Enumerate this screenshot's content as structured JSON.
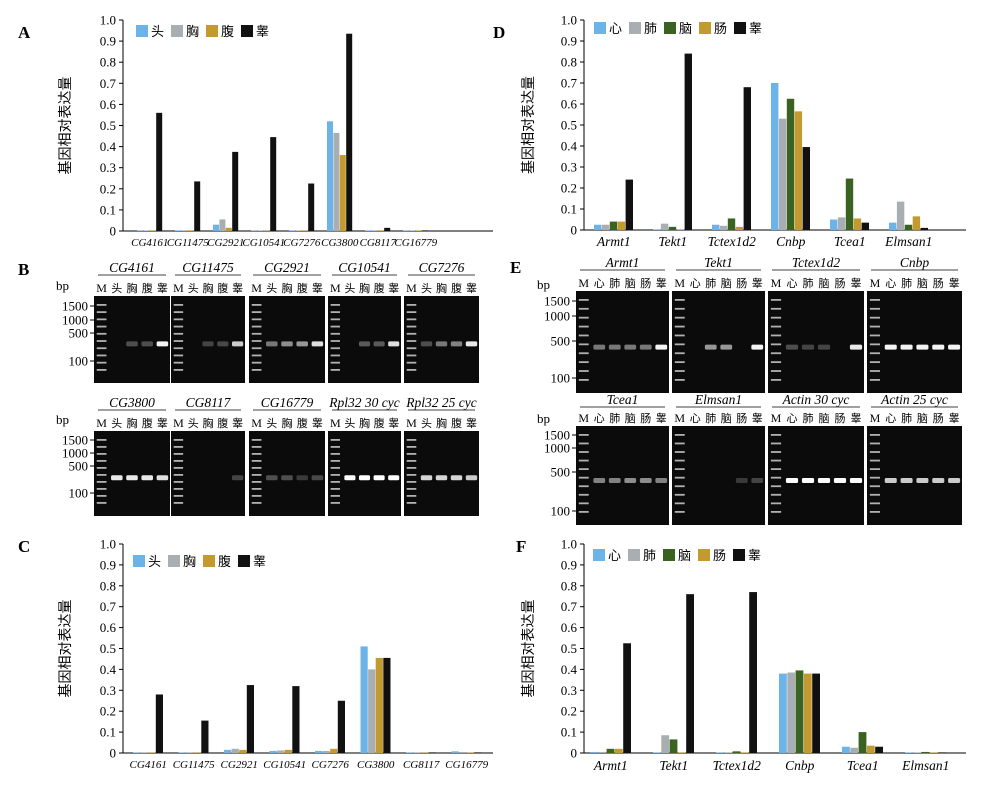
{
  "colors": {
    "c1": "#6cb4e8",
    "c2": "#a8aeb2",
    "c3": "#c39a2f",
    "c4": "#111111",
    "heart": "#6cb4e8",
    "lung": "#a8aeb2",
    "brain": "#3a6321",
    "gut": "#c39a2f",
    "testis": "#111111"
  },
  "ytick_labels": [
    "0",
    "0.1",
    "0.2",
    "0.3",
    "0.4",
    "0.5",
    "0.6",
    "0.7",
    "0.8",
    "0.9",
    "1.0"
  ],
  "chart_data": [
    {
      "panel": "A",
      "type": "bar",
      "ylabel": "基因相对表达量",
      "ylim": [
        0,
        1
      ],
      "legend": "top-left",
      "categories": [
        "CG4161",
        "CG11475",
        "CG2921",
        "CG10541",
        "CG7276",
        "CG3800",
        "CG8117",
        "CG16779"
      ],
      "series": [
        {
          "name": "头",
          "color_key": "c1",
          "values": [
            0.003,
            0.003,
            0.03,
            0.003,
            0.003,
            0.52,
            0.003,
            0.003
          ]
        },
        {
          "name": "胸",
          "color_key": "c2",
          "values": [
            0.003,
            0.003,
            0.055,
            0.003,
            0.003,
            0.465,
            0.003,
            0.003
          ]
        },
        {
          "name": "腹",
          "color_key": "c3",
          "values": [
            0.003,
            0.003,
            0.015,
            0.003,
            0.003,
            0.36,
            0.003,
            0.003
          ]
        },
        {
          "name": "睾",
          "color_key": "c4",
          "values": [
            0.56,
            0.235,
            0.375,
            0.445,
            0.225,
            0.935,
            0.015,
            0.003
          ]
        }
      ]
    },
    {
      "panel": "C",
      "type": "bar",
      "ylabel": "基因相对表达量",
      "ylim": [
        0,
        1
      ],
      "legend": "top-left",
      "categories": [
        "CG4161",
        "CG11475",
        "CG2921",
        "CG10541",
        "CG7276",
        "CG3800",
        "CG8117",
        "CG16779"
      ],
      "series": [
        {
          "name": "头",
          "color_key": "c1",
          "values": [
            0.003,
            0.003,
            0.015,
            0.01,
            0.01,
            0.51,
            0.003,
            0.008
          ]
        },
        {
          "name": "胸",
          "color_key": "c2",
          "values": [
            0.003,
            0.003,
            0.02,
            0.012,
            0.01,
            0.4,
            0.003,
            0.005
          ]
        },
        {
          "name": "腹",
          "color_key": "c3",
          "values": [
            0.003,
            0.003,
            0.015,
            0.015,
            0.02,
            0.455,
            0.003,
            0.003
          ]
        },
        {
          "name": "睾",
          "color_key": "c4",
          "values": [
            0.28,
            0.155,
            0.325,
            0.32,
            0.25,
            0.455,
            0.003,
            0.003
          ]
        }
      ]
    },
    {
      "panel": "D",
      "type": "bar",
      "ylabel": "基因相对表达量",
      "ylim": [
        0,
        1
      ],
      "legend": "top-left",
      "categories": [
        "Armt1",
        "Tekt1",
        "Tctex1d2",
        "Cnbp",
        "Tcea1",
        "Elmsan1"
      ],
      "series": [
        {
          "name": "心",
          "color_key": "heart",
          "values": [
            0.025,
            0.003,
            0.025,
            0.7,
            0.05,
            0.035
          ]
        },
        {
          "name": "肺",
          "color_key": "lung",
          "values": [
            0.025,
            0.03,
            0.02,
            0.53,
            0.06,
            0.135
          ]
        },
        {
          "name": "脑",
          "color_key": "brain",
          "values": [
            0.04,
            0.015,
            0.055,
            0.625,
            0.245,
            0.025
          ]
        },
        {
          "name": "肠",
          "color_key": "gut",
          "values": [
            0.04,
            0.003,
            0.015,
            0.565,
            0.055,
            0.065
          ]
        },
        {
          "name": "睾",
          "color_key": "testis",
          "values": [
            0.24,
            0.84,
            0.68,
            0.395,
            0.035,
            0.01
          ]
        }
      ]
    },
    {
      "panel": "F",
      "type": "bar",
      "ylabel": "基因相对表达量",
      "ylim": [
        0,
        1
      ],
      "legend": "top-left",
      "categories": [
        "Armt1",
        "Tekt1",
        "Tctex1d2",
        "Cnbp",
        "Tcea1",
        "Elmsan1"
      ],
      "series": [
        {
          "name": "心",
          "color_key": "heart",
          "values": [
            0.005,
            0.003,
            0.003,
            0.38,
            0.03,
            0.003
          ]
        },
        {
          "name": "肺",
          "color_key": "lung",
          "values": [
            0.005,
            0.085,
            0.003,
            0.385,
            0.025,
            0.003
          ]
        },
        {
          "name": "脑",
          "color_key": "brain",
          "values": [
            0.02,
            0.065,
            0.008,
            0.395,
            0.1,
            0.005
          ]
        },
        {
          "name": "肠",
          "color_key": "gut",
          "values": [
            0.02,
            0.003,
            0.003,
            0.38,
            0.035,
            0.003
          ]
        },
        {
          "name": "睾",
          "color_key": "testis",
          "values": [
            0.525,
            0.76,
            0.77,
            0.38,
            0.03,
            0.003
          ]
        }
      ]
    }
  ],
  "gels": [
    {
      "panel": "B",
      "bp_label": "bp",
      "rows": [
        {
          "ladder": [
            "1500",
            "1000",
            "500",
            "100"
          ],
          "items": [
            {
              "title": "CG4161",
              "lanes": [
                "M",
                "头",
                "胸",
                "腹",
                "睾"
              ],
              "bands": [
                0,
                0.15,
                0.15,
                0.95
              ]
            },
            {
              "title": "CG11475",
              "lanes": [
                "M",
                "头",
                "胸",
                "腹",
                "睾"
              ],
              "bands": [
                0,
                0.1,
                0.12,
                0.75
              ]
            },
            {
              "title": "CG2921",
              "lanes": [
                "M",
                "头",
                "胸",
                "腹",
                "睾"
              ],
              "bands": [
                0.35,
                0.45,
                0.5,
                0.85
              ]
            },
            {
              "title": "CG10541",
              "lanes": [
                "M",
                "头",
                "胸",
                "腹",
                "睾"
              ],
              "bands": [
                0,
                0.2,
                0.2,
                0.85
              ]
            },
            {
              "title": "CG7276",
              "lanes": [
                "M",
                "头",
                "胸",
                "腹",
                "睾"
              ],
              "bands": [
                0.15,
                0.35,
                0.4,
                0.9
              ]
            }
          ]
        },
        {
          "ladder": [
            "1500",
            "1000",
            "500",
            "100"
          ],
          "items": [
            {
              "title": "CG3800",
              "lanes": [
                "M",
                "头",
                "胸",
                "腹",
                "睾"
              ],
              "bands": [
                0.9,
                0.9,
                0.9,
                0.85
              ]
            },
            {
              "title": "CG8117",
              "lanes": [
                "M",
                "头",
                "胸",
                "腹",
                "睾"
              ],
              "bands": [
                0,
                0,
                0,
                0.1
              ]
            },
            {
              "title": "CG16779",
              "lanes": [
                "M",
                "头",
                "胸",
                "腹",
                "睾"
              ],
              "bands": [
                0.15,
                0.15,
                0.05,
                0.12
              ]
            },
            {
              "title": "Rpl32 30 cyc",
              "lanes": [
                "M",
                "头",
                "胸",
                "腹",
                "睾"
              ],
              "bands": [
                1,
                1,
                1,
                1
              ]
            },
            {
              "title": "Rpl32 25 cyc",
              "lanes": [
                "M",
                "头",
                "胸",
                "腹",
                "睾"
              ],
              "bands": [
                0.8,
                0.8,
                0.8,
                0.75
              ]
            }
          ]
        }
      ]
    },
    {
      "panel": "E",
      "bp_label": "bp",
      "rows": [
        {
          "ladder": [
            "1500",
            "1000",
            "500",
            "100"
          ],
          "items": [
            {
              "title": "Armt1",
              "lanes": [
                "M",
                "心",
                "肺",
                "脑",
                "肠",
                "睾"
              ],
              "bands": [
                0.35,
                0.35,
                0.35,
                0.35,
                0.95
              ]
            },
            {
              "title": "Tekt1",
              "lanes": [
                "M",
                "心",
                "肺",
                "脑",
                "肠",
                "睾"
              ],
              "bands": [
                0,
                0.5,
                0.5,
                0,
                0.95
              ]
            },
            {
              "title": "Tctex1d2",
              "lanes": [
                "M",
                "心",
                "肺",
                "脑",
                "肠",
                "睾"
              ],
              "bands": [
                0.15,
                0.1,
                0.1,
                0,
                0.9
              ]
            },
            {
              "title": "Cnbp",
              "lanes": [
                "M",
                "心",
                "肺",
                "脑",
                "肠",
                "睾"
              ],
              "bands": [
                0.95,
                0.95,
                0.95,
                0.95,
                0.95
              ]
            }
          ]
        },
        {
          "ladder": [
            "1500",
            "1000",
            "500",
            "100"
          ],
          "items": [
            {
              "title": "Tcea1",
              "lanes": [
                "M",
                "心",
                "肺",
                "脑",
                "肠",
                "睾"
              ],
              "bands": [
                0.4,
                0.4,
                0.45,
                0.45,
                0.4
              ]
            },
            {
              "title": "Elmsan1",
              "lanes": [
                "M",
                "心",
                "肺",
                "脑",
                "肠",
                "睾"
              ],
              "bands": [
                0,
                0,
                0,
                0.05,
                0.1
              ]
            },
            {
              "title": "Actin 30 cyc",
              "lanes": [
                "M",
                "心",
                "肺",
                "脑",
                "肠",
                "睾"
              ],
              "bands": [
                1,
                1,
                1,
                1,
                1
              ]
            },
            {
              "title": "Actin 25 cyc",
              "lanes": [
                "M",
                "心",
                "肺",
                "脑",
                "肠",
                "睾"
              ],
              "bands": [
                0.75,
                0.75,
                0.75,
                0.75,
                0.75
              ]
            }
          ]
        }
      ]
    }
  ]
}
